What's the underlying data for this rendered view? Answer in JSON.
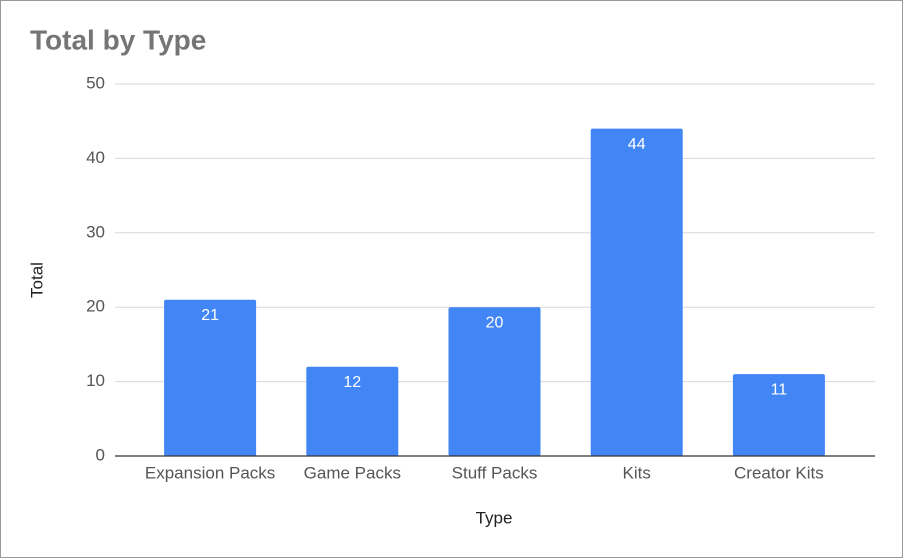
{
  "chart_data": {
    "type": "bar",
    "title": "Total by Type",
    "x_label": "Type",
    "y_label": "Total",
    "categories": [
      "Expansion Packs",
      "Game Packs",
      "Stuff Packs",
      "Kits",
      "Creator Kits"
    ],
    "values": [
      21,
      12,
      20,
      44,
      11
    ],
    "color": "#4285f4",
    "ylim": [
      0,
      50
    ],
    "yticks": [
      0,
      10,
      20,
      30,
      40,
      50
    ],
    "grid": true,
    "data_labels": true
  }
}
